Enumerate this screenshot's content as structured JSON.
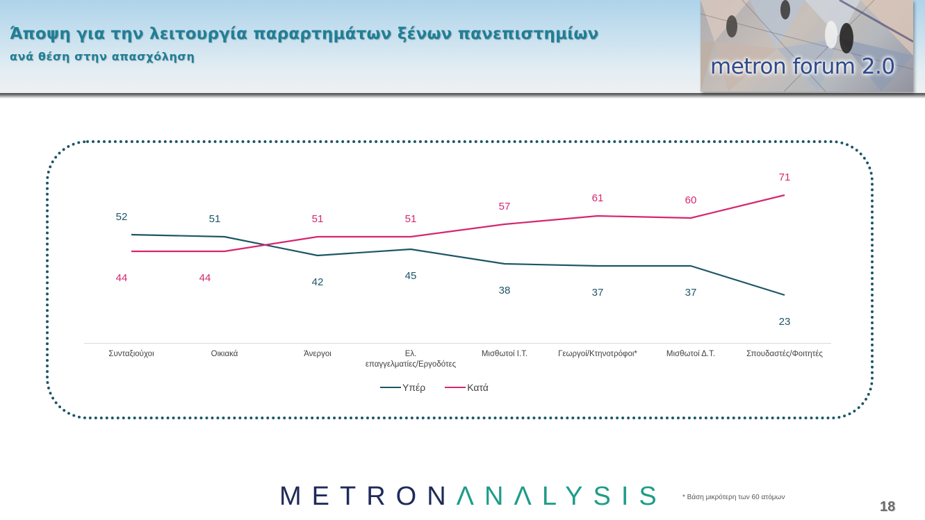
{
  "header": {
    "title": "Άποψη για την λειτουργία παραρτημάτων ξένων πανεπιστημίων",
    "subtitle": "ανά θέση στην απασχόληση",
    "logo_text": "metron forum 2.0"
  },
  "colors": {
    "yper": "#1d5566",
    "kata": "#d6256f",
    "title": "#1f7f95",
    "frame": "#1d5566"
  },
  "chart_data": {
    "type": "line",
    "title": "Άποψη για την λειτουργία παραρτημάτων ξένων πανεπιστημίων",
    "subtitle": "ανά θέση στην απασχόληση",
    "xlabel": "",
    "ylabel": "",
    "categories": [
      "Συνταξιούχοι",
      "Οικιακά",
      "Άνεργοι",
      "Ελ. επαγγελματίες/Εργοδότες",
      "Μισθωτοί Ι.Τ.",
      "Γεωργοί/Κτηνοτρόφοι*",
      "Μισθωτοί Δ.Τ.",
      "Σπουδαστές/Φοιτητές"
    ],
    "series": [
      {
        "name": "Υπέρ",
        "color": "#1d5566",
        "values": [
          52,
          51,
          42,
          45,
          38,
          37,
          37,
          23
        ]
      },
      {
        "name": "Κατά",
        "color": "#d6256f",
        "values": [
          44,
          44,
          51,
          51,
          57,
          61,
          60,
          71
        ]
      }
    ],
    "data_labels": true,
    "grid": false,
    "y_axis_visible": false,
    "legend_position": "bottom"
  },
  "category_display": [
    [
      "Συνταξιούχοι"
    ],
    [
      "Οικιακά"
    ],
    [
      "Άνεργοι"
    ],
    [
      "Ελ.",
      "επαγγελματίες/Εργοδότες"
    ],
    [
      "Μισθωτοί Ι.Τ."
    ],
    [
      "Γεωργοί/Κτηνοτρόφοι*"
    ],
    [
      "Μισθωτοί Δ.Τ."
    ],
    [
      "Σπουδαστές/Φοιτητές"
    ]
  ],
  "legend": {
    "items": [
      {
        "label": "Υπέρ",
        "color": "#1d5566"
      },
      {
        "label": "Κατά",
        "color": "#d6256f"
      }
    ]
  },
  "footer": {
    "brand_part1": "METRON",
    "brand_part2": "ΛNΛLYSIS",
    "footnote": "*  Βάση μικρότερη των 60 ατόμων",
    "page_number": "18"
  }
}
